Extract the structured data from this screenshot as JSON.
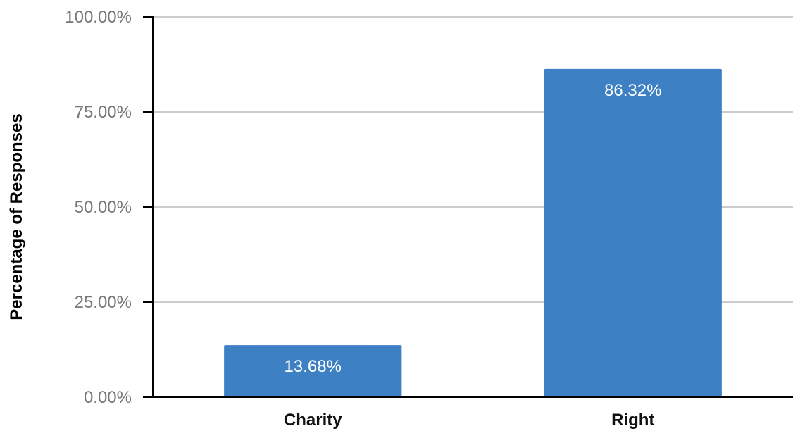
{
  "chart_data": {
    "type": "bar",
    "categories": [
      "Charity",
      "Right"
    ],
    "values": [
      13.68,
      86.32
    ],
    "data_labels": [
      "13.68%",
      "86.32%"
    ],
    "title": "",
    "xlabel": "",
    "ylabel": "Percentage of Responses",
    "ylim": [
      0,
      100
    ],
    "yticks": [
      0,
      25,
      50,
      75,
      100
    ],
    "ytick_labels": [
      "0.00%",
      "25.00%",
      "50.00%",
      "75.00%",
      "100.00%"
    ],
    "grid": true,
    "legend": "none",
    "colors": {
      "bar": "#3d80c4",
      "grid": "#cccccc",
      "axis": "#000000",
      "tick_text": "#777777"
    }
  }
}
